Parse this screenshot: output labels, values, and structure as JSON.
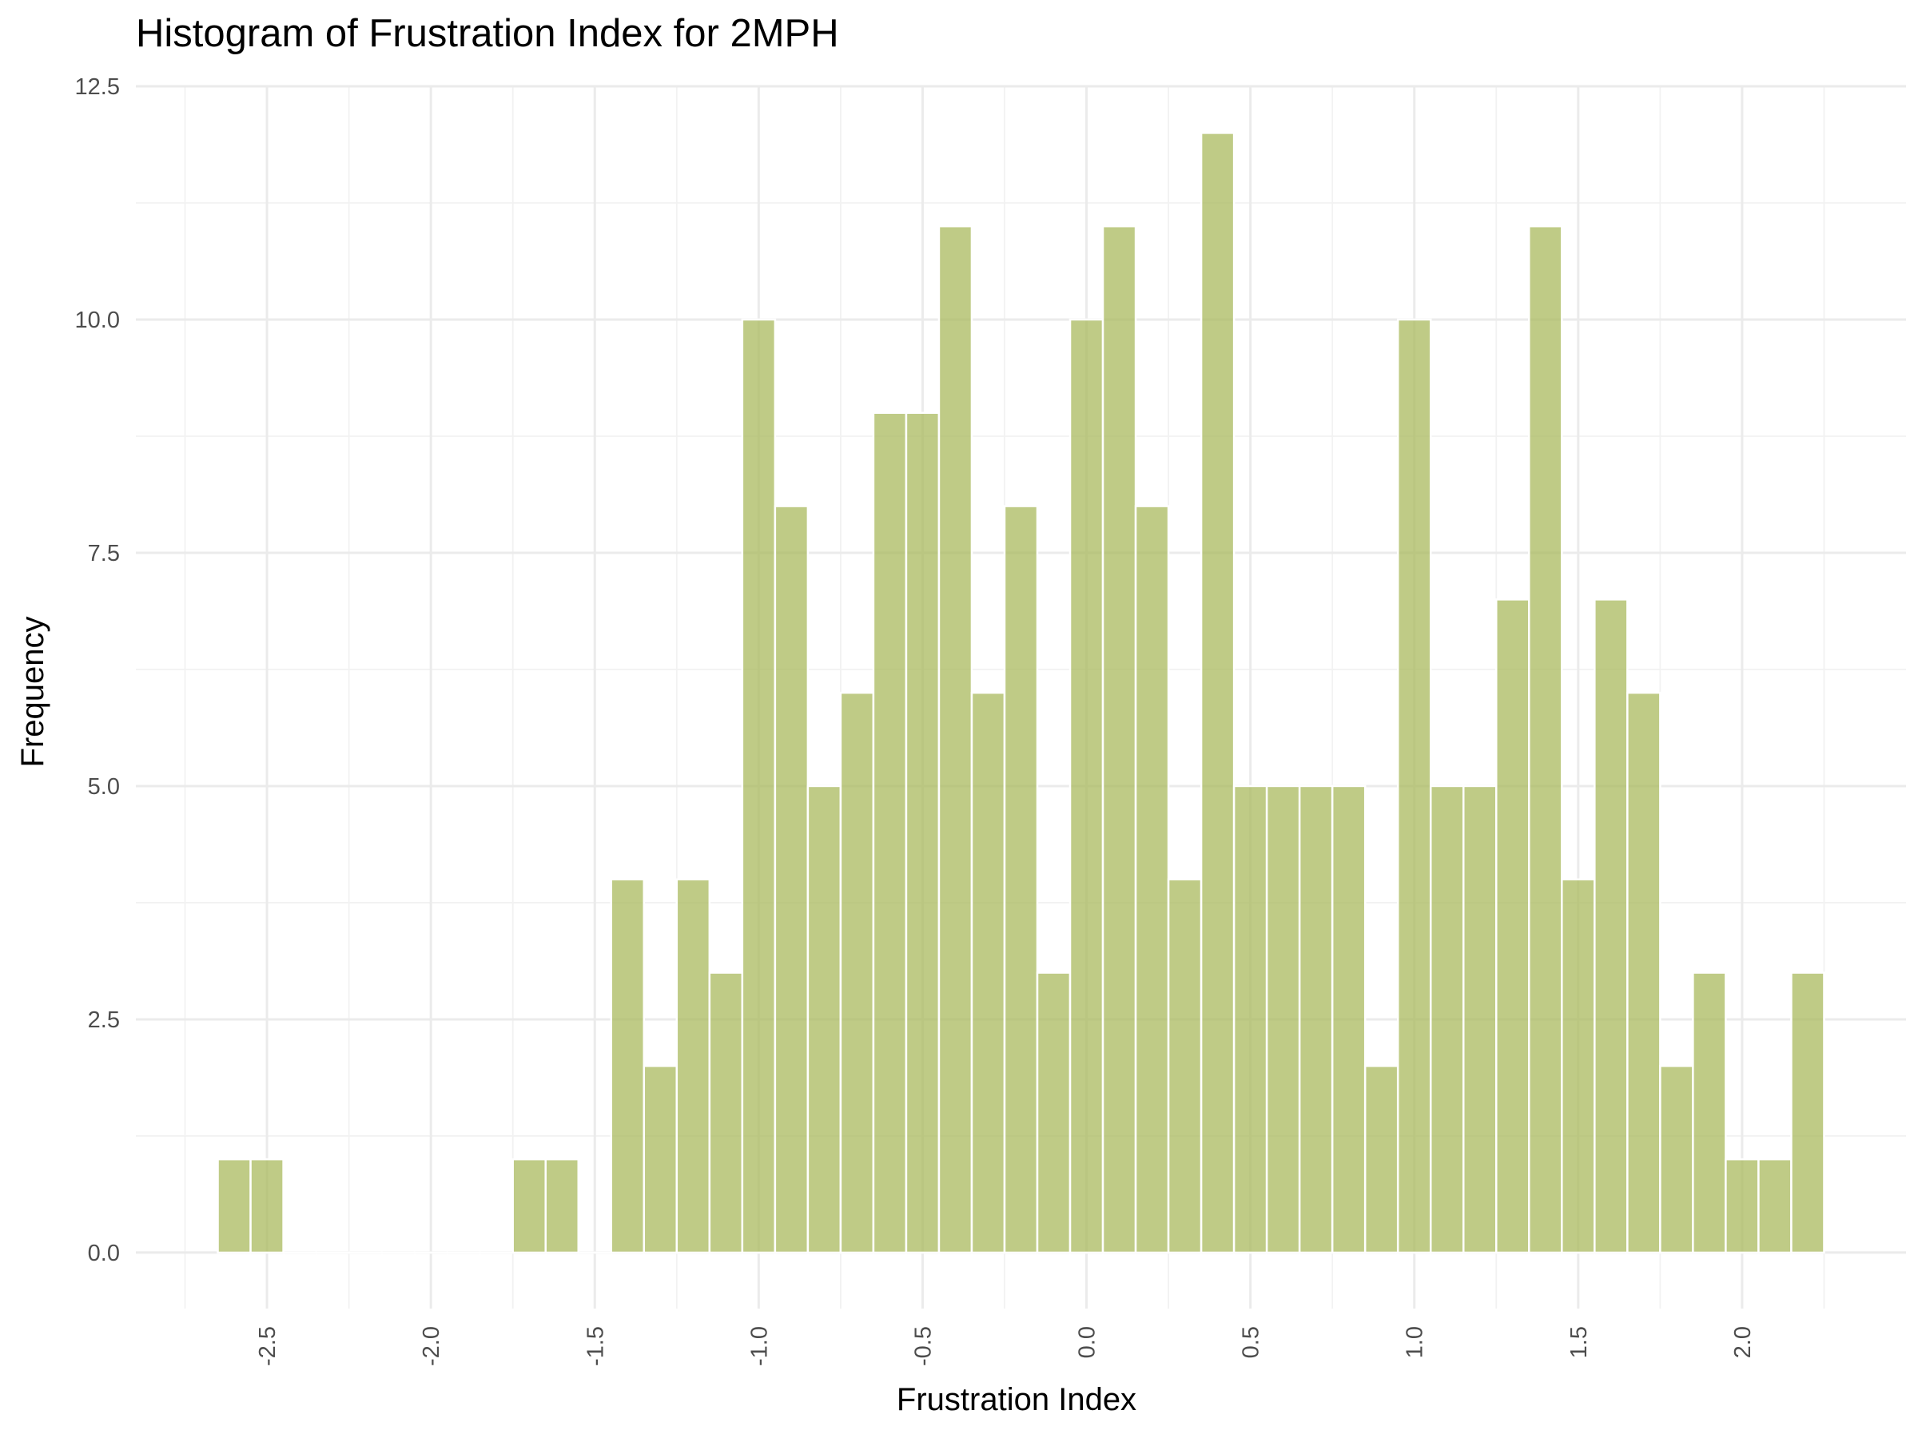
{
  "chart_data": {
    "type": "bar",
    "title": "Histogram of Frustration Index for 2MPH",
    "xlabel": "Frustration Index",
    "ylabel": "Frequency",
    "bin_width": 0.1,
    "bin_starts": [
      -2.65,
      -2.55,
      -2.45,
      -2.35,
      -2.25,
      -2.15,
      -2.05,
      -1.95,
      -1.85,
      -1.75,
      -1.65,
      -1.55,
      -1.45,
      -1.35,
      -1.25,
      -1.15,
      -1.05,
      -0.95,
      -0.85,
      -0.75,
      -0.65,
      -0.55,
      -0.45,
      -0.35,
      -0.25,
      -0.15,
      -0.05,
      0.05,
      0.15,
      0.25,
      0.35,
      0.45,
      0.55,
      0.65,
      0.75,
      0.85,
      0.95,
      1.05,
      1.15,
      1.25,
      1.35,
      1.45,
      1.55,
      1.65,
      1.75,
      1.85,
      1.95,
      2.05,
      2.15
    ],
    "values": [
      1,
      1,
      0,
      0,
      0,
      0,
      0,
      0,
      0,
      1,
      1,
      0,
      4,
      2,
      4,
      3,
      10,
      8,
      5,
      6,
      9,
      9,
      11,
      6,
      8,
      3,
      10,
      11,
      8,
      4,
      12,
      5,
      5,
      5,
      5,
      2,
      10,
      5,
      5,
      7,
      11,
      4,
      7,
      6,
      2,
      3,
      1,
      1,
      3
    ],
    "x_ticks": [
      "-2.5",
      "-2.0",
      "-1.5",
      "-1.0",
      "-0.5",
      "0.0",
      "0.5",
      "1.0",
      "1.5",
      "2.0"
    ],
    "y_ticks": [
      "0.0",
      "2.5",
      "5.0",
      "7.5",
      "10.0",
      "12.5"
    ],
    "xlim": [
      -2.9,
      2.5
    ],
    "ylim": [
      -0.6,
      12.5
    ],
    "bar_color": "#a9ba5d",
    "grid": true,
    "legend": "none"
  }
}
